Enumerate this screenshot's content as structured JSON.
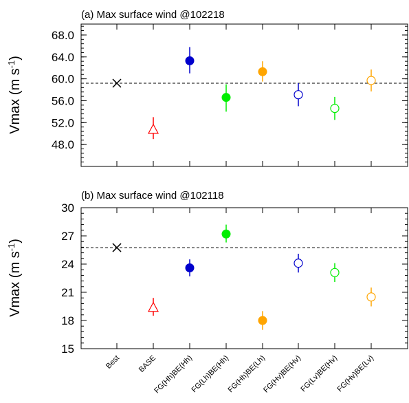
{
  "chart_data": [
    {
      "type": "scatter",
      "title": "(a) Max surface wind @102218",
      "ylabel": "Vmax (m s-1)",
      "ylabel_main": "Vmax (m s",
      "ylabel_sup": "-1",
      "ylabel_close": ")",
      "ylim": [
        44.0,
        70.0
      ],
      "yticks": [
        "48.0",
        "52.0",
        "56.0",
        "60.0",
        "64.0",
        "68.0"
      ],
      "reference_line": 59.2,
      "categories": [
        "Best",
        "BASE",
        "FG(Hh)BE(Hh)",
        "FG(Lh)BE(Hh)",
        "FG(Hh)BE(Lh)",
        "FG(Hv)BE(Hv)",
        "FG(Lv)BE(Hv)",
        "FG(Hv)BE(Lv)"
      ],
      "points": [
        {
          "category": "Best",
          "value": 59.2,
          "low": null,
          "high": null,
          "marker": "cross",
          "color": "#000000"
        },
        {
          "category": "BASE",
          "value": 50.8,
          "low": 49.0,
          "high": 53.0,
          "marker": "triangle-open",
          "color": "#ff0000"
        },
        {
          "category": "FG(Hh)BE(Hh)",
          "value": 63.3,
          "low": 61.0,
          "high": 65.8,
          "marker": "circle-filled",
          "color": "#0000cc"
        },
        {
          "category": "FG(Lh)BE(Hh)",
          "value": 56.6,
          "low": 54.0,
          "high": 59.0,
          "marker": "circle-filled",
          "color": "#00ee00"
        },
        {
          "category": "FG(Hh)BE(Lh)",
          "value": 61.3,
          "low": 59.5,
          "high": 63.2,
          "marker": "circle-filled",
          "color": "#ffa500"
        },
        {
          "category": "FG(Hv)BE(Hv)",
          "value": 57.1,
          "low": 55.0,
          "high": 59.2,
          "marker": "circle-open",
          "color": "#0000cc"
        },
        {
          "category": "FG(Lv)BE(Hv)",
          "value": 54.6,
          "low": 52.5,
          "high": 56.7,
          "marker": "circle-open",
          "color": "#00ee00"
        },
        {
          "category": "FG(Hv)BE(Lv)",
          "value": 59.7,
          "low": 57.7,
          "high": 61.7,
          "marker": "circle-open",
          "color": "#ffa500"
        }
      ]
    },
    {
      "type": "scatter",
      "title": "(b) Max surface wind @102118",
      "ylabel": "Vmax (m s-1)",
      "ylabel_main": "Vmax (m s",
      "ylabel_sup": "-1",
      "ylabel_close": ")",
      "ylim": [
        15,
        30
      ],
      "yticks": [
        "15",
        "18",
        "21",
        "24",
        "27",
        "30"
      ],
      "reference_line": 25.75,
      "categories": [
        "Best",
        "BASE",
        "FG(Hh)BE(Hh)",
        "FG(Lh)BE(Hh)",
        "FG(Hh)BE(Lh)",
        "FG(Hv)BE(Hv)",
        "FG(Lv)BE(Hv)",
        "FG(Hv)BE(Lv)"
      ],
      "points": [
        {
          "category": "Best",
          "value": 25.75,
          "low": null,
          "high": null,
          "marker": "cross",
          "color": "#000000"
        },
        {
          "category": "BASE",
          "value": 19.4,
          "low": 18.5,
          "high": 20.4,
          "marker": "triangle-open",
          "color": "#ff0000"
        },
        {
          "category": "FG(Hh)BE(Hh)",
          "value": 23.6,
          "low": 22.7,
          "high": 24.5,
          "marker": "circle-filled",
          "color": "#0000cc"
        },
        {
          "category": "FG(Lh)BE(Hh)",
          "value": 27.2,
          "low": 26.3,
          "high": 28.2,
          "marker": "circle-filled",
          "color": "#00ee00"
        },
        {
          "category": "FG(Hh)BE(Lh)",
          "value": 18.0,
          "low": 17.0,
          "high": 19.0,
          "marker": "circle-filled",
          "color": "#ffa500"
        },
        {
          "category": "FG(Hv)BE(Hv)",
          "value": 24.1,
          "low": 23.1,
          "high": 25.1,
          "marker": "circle-open",
          "color": "#0000cc"
        },
        {
          "category": "FG(Lv)BE(Hv)",
          "value": 23.1,
          "low": 22.1,
          "high": 24.1,
          "marker": "circle-open",
          "color": "#00ee00"
        },
        {
          "category": "FG(Hv)BE(Lv)",
          "value": 20.5,
          "low": 19.5,
          "high": 21.5,
          "marker": "circle-open",
          "color": "#ffa500"
        }
      ]
    }
  ]
}
